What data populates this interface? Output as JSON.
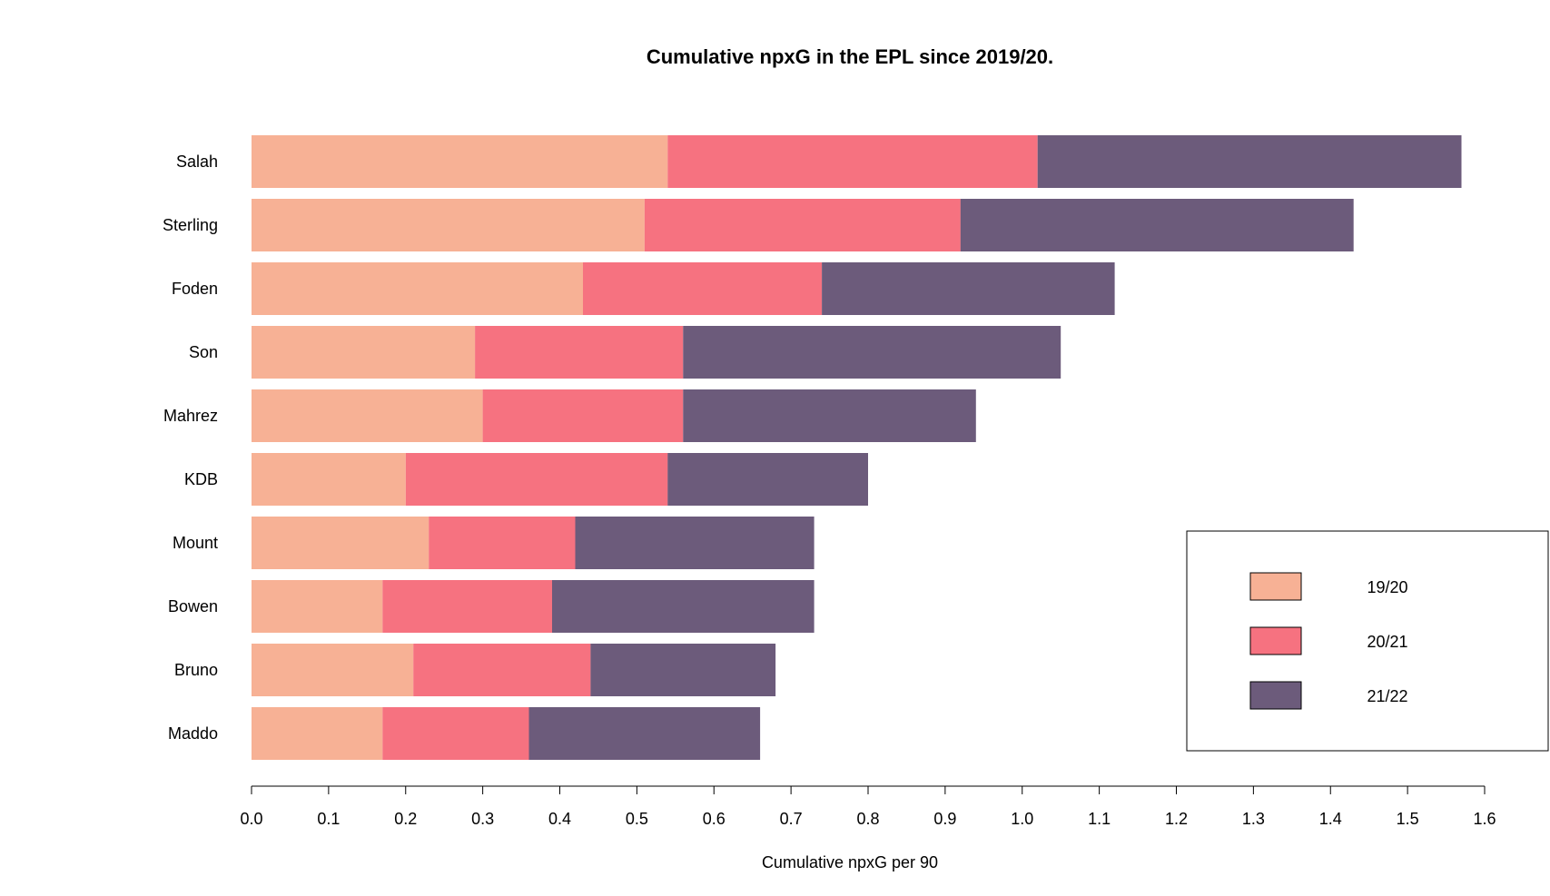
{
  "chart_data": {
    "type": "bar",
    "orientation": "horizontal",
    "stacked": true,
    "title": "Cumulative npxG in the EPL since 2019/20.",
    "xlabel": "Cumulative npxG per 90",
    "ylabel": "",
    "xlim": [
      0,
      1.6
    ],
    "xticks": [
      "0.0",
      "0.1",
      "0.2",
      "0.3",
      "0.4",
      "0.5",
      "0.6",
      "0.7",
      "0.8",
      "0.9",
      "1.0",
      "1.1",
      "1.2",
      "1.3",
      "1.4",
      "1.5",
      "1.6"
    ],
    "grid": false,
    "legend_position": "bottom-right",
    "categories": [
      "Salah",
      "Sterling",
      "Foden",
      "Son",
      "Mahrez",
      "KDB",
      "Mount",
      "Bowen",
      "Bruno",
      "Maddo"
    ],
    "series": [
      {
        "name": "19/20",
        "color": "#F7B195",
        "values": [
          0.54,
          0.51,
          0.43,
          0.29,
          0.3,
          0.2,
          0.23,
          0.17,
          0.21,
          0.17
        ]
      },
      {
        "name": "20/21",
        "color": "#F67280",
        "values": [
          0.48,
          0.41,
          0.31,
          0.27,
          0.26,
          0.34,
          0.19,
          0.22,
          0.23,
          0.19
        ]
      },
      {
        "name": "21/22",
        "color": "#6C5B7B",
        "values": [
          0.55,
          0.51,
          0.38,
          0.49,
          0.38,
          0.26,
          0.31,
          0.34,
          0.24,
          0.3
        ]
      }
    ]
  }
}
